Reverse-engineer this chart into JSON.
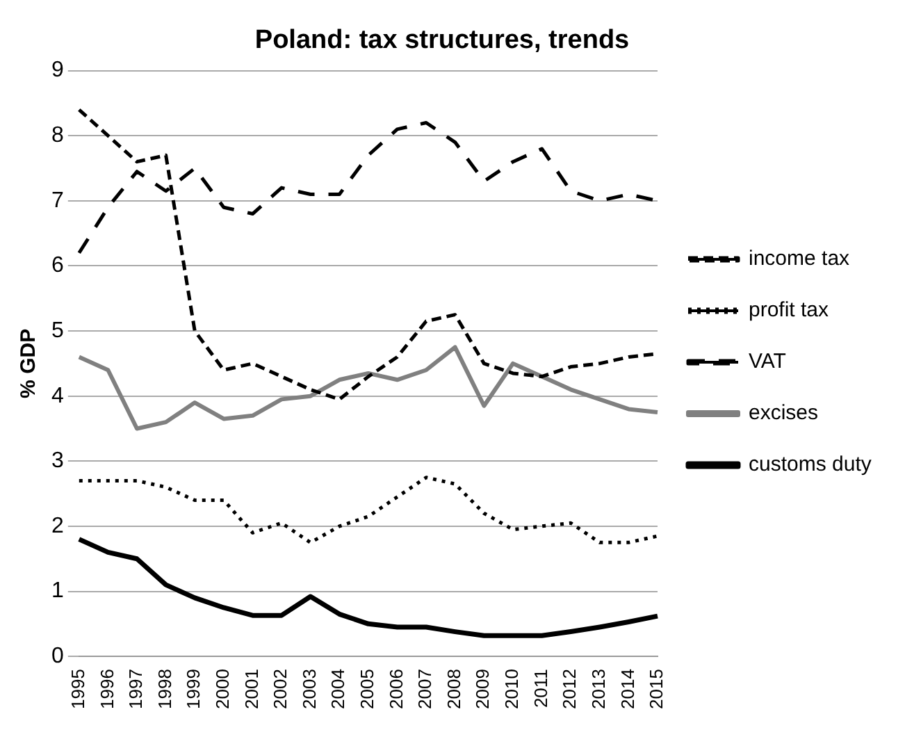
{
  "chart_data": {
    "type": "line",
    "title": "Poland: tax structures, trends",
    "ylabel": "% GDP",
    "categories": [
      "1995",
      "1996",
      "1997",
      "1998",
      "1999",
      "2000",
      "2001",
      "2002",
      "2003",
      "2004",
      "2005",
      "2006",
      "2007",
      "2008",
      "2009",
      "2010",
      "2011",
      "2012",
      "2013",
      "2014",
      "2015"
    ],
    "ylim": [
      0,
      9
    ],
    "yticks": [
      0,
      1,
      2,
      3,
      4,
      5,
      6,
      7,
      8,
      9
    ],
    "grid": "y",
    "legend": "right",
    "marker": "none",
    "series": [
      {
        "name": "income tax",
        "color": "#000000",
        "line_style": "dashed",
        "values": [
          8.4,
          8.0,
          7.6,
          7.7,
          5.0,
          4.4,
          4.5,
          4.3,
          4.1,
          3.95,
          4.3,
          4.6,
          5.15,
          5.25,
          4.5,
          4.35,
          4.3,
          4.45,
          4.5,
          4.6,
          4.65
        ]
      },
      {
        "name": "profit tax",
        "color": "#000000",
        "line_style": "dotted",
        "values": [
          2.7,
          2.7,
          2.7,
          2.6,
          2.4,
          2.4,
          1.9,
          2.05,
          1.75,
          2.0,
          2.15,
          2.45,
          2.75,
          2.65,
          2.2,
          1.95,
          2.0,
          2.05,
          1.75,
          1.75,
          1.85
        ]
      },
      {
        "name": "VAT",
        "color": "#000000",
        "line_style": "dashed",
        "values": [
          6.2,
          6.9,
          7.45,
          7.15,
          7.5,
          6.9,
          6.8,
          7.2,
          7.1,
          7.1,
          7.7,
          8.1,
          8.2,
          7.9,
          7.3,
          7.6,
          7.8,
          7.15,
          7.0,
          7.1,
          7.0
        ]
      },
      {
        "name": "excises",
        "color": "#808080",
        "line_style": "solid",
        "values": [
          4.6,
          4.4,
          3.5,
          3.6,
          3.9,
          3.65,
          3.7,
          3.95,
          4.0,
          4.25,
          4.35,
          4.25,
          4.4,
          4.75,
          3.85,
          4.5,
          4.3,
          4.1,
          3.95,
          3.8,
          3.75
        ]
      },
      {
        "name": "customs duty",
        "color": "#000000",
        "line_style": "solid",
        "values": [
          1.8,
          1.6,
          1.5,
          1.1,
          0.9,
          0.75,
          0.63,
          0.63,
          0.92,
          0.65,
          0.5,
          0.45,
          0.45,
          0.38,
          0.32,
          0.32,
          0.32,
          0.38,
          0.45,
          0.53,
          0.62
        ]
      }
    ]
  }
}
